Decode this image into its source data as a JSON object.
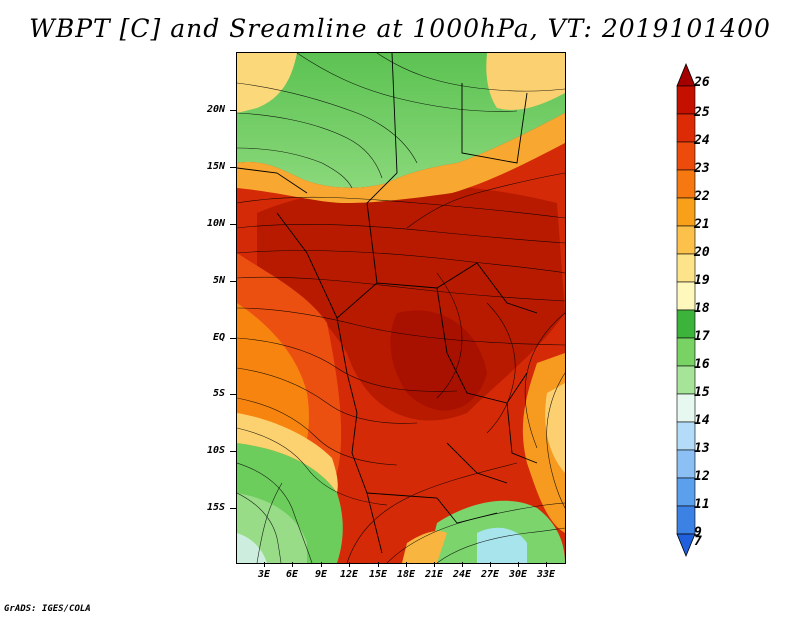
{
  "title": "WBPT [C] and Sreamline at 1000hPa, VT: 2019101400",
  "footer": "GrADS: IGES/COLA",
  "lat_labels": [
    "20N",
    "15N",
    "10N",
    "5N",
    "EQ",
    "5S",
    "10S",
    "15S"
  ],
  "lon_labels": [
    "3E",
    "6E",
    "9E",
    "12E",
    "15E",
    "18E",
    "21E",
    "24E",
    "27E",
    "30E",
    "33E"
  ],
  "colorbar": {
    "labels": [
      "26",
      "25",
      "24",
      "23",
      "22",
      "21",
      "20",
      "19",
      "18",
      "17",
      "16",
      "15",
      "14",
      "13",
      "12",
      "11",
      "9",
      "7"
    ],
    "colors": [
      "#a50000",
      "#c51000",
      "#dc2b05",
      "#ec4b0c",
      "#f57910",
      "#f8a019",
      "#fbc14a",
      "#fde48a",
      "#fff8bc",
      "#3cb43c",
      "#78d264",
      "#a6e49a",
      "#e6f8f0",
      "#b4dcf8",
      "#8cc0f4",
      "#5aa0ec",
      "#3c82e4",
      "#2060dc"
    ]
  }
}
